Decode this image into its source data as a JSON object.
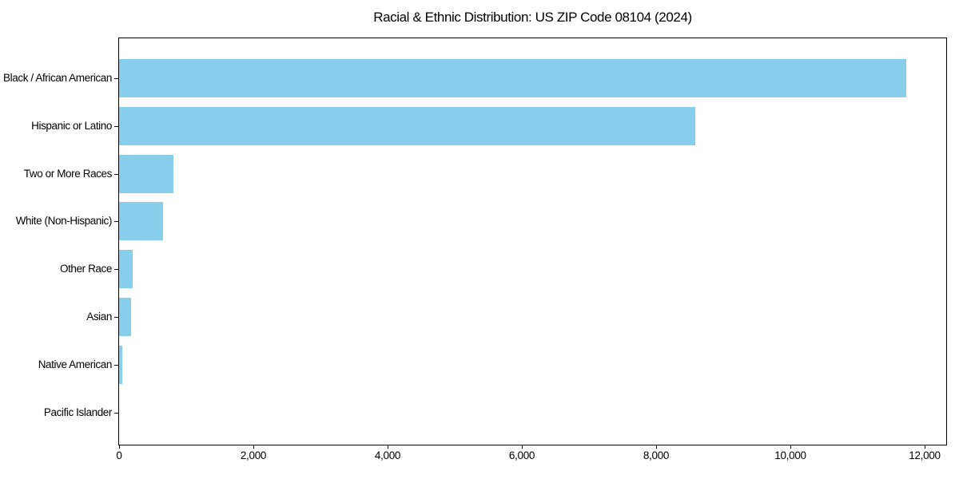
{
  "chart_data": {
    "type": "bar",
    "orientation": "horizontal",
    "title": "Racial & Ethnic Distribution: US ZIP Code 08104 (2024)",
    "categories": [
      "Black / African American",
      "Hispanic or Latino",
      "Two or More Races",
      "White (Non-Hispanic)",
      "Other Race",
      "Asian",
      "Native American",
      "Pacific Islander"
    ],
    "values": [
      11730,
      8580,
      810,
      650,
      200,
      175,
      50,
      0
    ],
    "xlabel": "",
    "ylabel": "",
    "xlim": [
      0,
      12320
    ],
    "xticks": [
      0,
      2000,
      4000,
      6000,
      8000,
      10000,
      12000
    ],
    "xtick_labels": [
      "0",
      "2,000",
      "4,000",
      "6,000",
      "8,000",
      "10,000",
      "12,000"
    ],
    "bar_color": "#87CEEB",
    "axis_color": "#000000",
    "background_color": "#ffffff",
    "grid": false,
    "legend": false
  }
}
